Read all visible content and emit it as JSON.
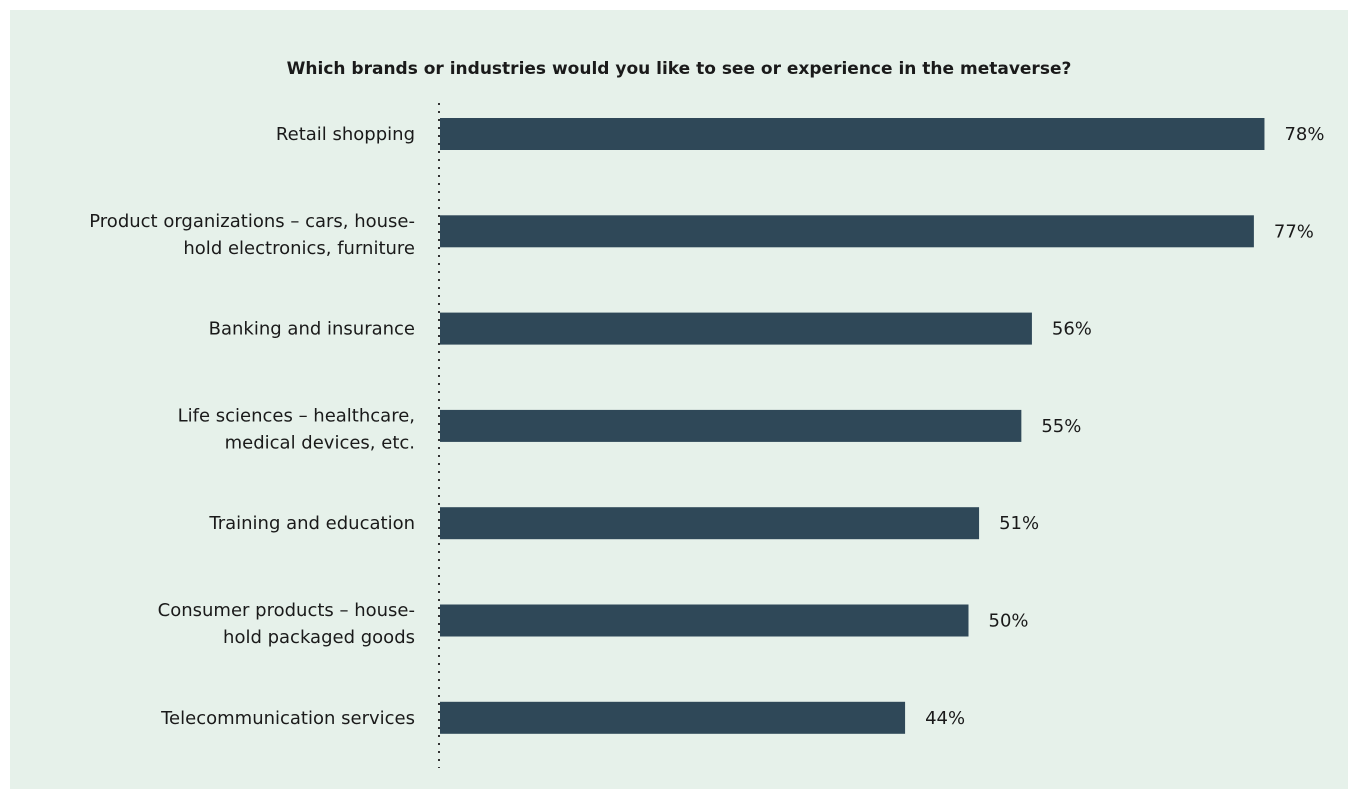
{
  "chart_data": {
    "type": "bar",
    "orientation": "horizontal",
    "title": "Which brands or industries would you like to see or experience in the metaverse?",
    "categories": [
      [
        "Retail shopping"
      ],
      [
        "Product organizations – cars, house-",
        "hold electronics, furniture"
      ],
      [
        "Banking and insurance"
      ],
      [
        "Life sciences – healthcare,",
        "medical devices, etc."
      ],
      [
        "Training and education"
      ],
      [
        "Consumer products – house-",
        "hold packaged goods"
      ],
      [
        "Telecommunication services"
      ]
    ],
    "values": [
      78,
      77,
      56,
      55,
      51,
      50,
      44
    ],
    "value_labels": [
      "78%",
      "77%",
      "56%",
      "55%",
      "51%",
      "50%",
      "44%"
    ],
    "xlim": [
      0,
      100
    ],
    "grid": false,
    "legend": "none",
    "colors": {
      "bar": "#2f4858",
      "background": "#e6f1ea",
      "text": "#1a1a1a",
      "axis": "#333333"
    }
  }
}
